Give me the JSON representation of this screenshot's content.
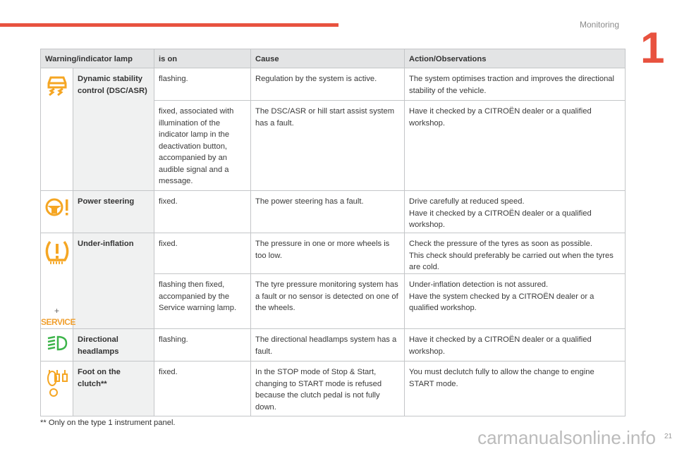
{
  "header": {
    "section": "Monitoring",
    "chapter": "1"
  },
  "table": {
    "columns": [
      "Warning/indicator lamp",
      "is on",
      "Cause",
      "Action/Observations"
    ],
    "rows": [
      {
        "icon": "dsc-car-skid-icon",
        "name": "Dynamic stability control (DSC/ASR)",
        "entries": [
          {
            "is_on": "flashing.",
            "cause": "Regulation by the system is active.",
            "action": "The system optimises traction and improves the directional stability of the vehicle."
          },
          {
            "is_on": "fixed, associated with illumination of the indicator lamp in the deactivation button, accompanied by an audible signal and a message.",
            "cause": "The DSC/ASR or hill start assist system has a fault.",
            "action": "Have it checked by a CITROËN dealer or a qualified workshop."
          }
        ]
      },
      {
        "icon": "power-steering-icon",
        "name": "Power steering",
        "entries": [
          {
            "is_on": "fixed.",
            "cause": "The power steering has a fault.",
            "action": "Drive carefully at reduced speed.\nHave it checked by a CITROËN dealer or a qualified workshop."
          }
        ]
      },
      {
        "icon": "tyre-pressure-icon",
        "name": "Under-inflation",
        "plus": "+",
        "service": "SERVICE",
        "entries": [
          {
            "is_on": "fixed.",
            "cause": "The pressure in one or more wheels is too low.",
            "action": "Check the pressure of the tyres as soon as possible.\nThis check should preferably be carried out when the tyres are cold."
          },
          {
            "is_on": "flashing then fixed, accompanied by the Service warning lamp.",
            "cause": "The tyre pressure monitoring system has a fault or no sensor is detected on one of the wheels.",
            "action": "Under-inflation detection is not assured.\nHave the system checked by a CITROËN dealer or a qualified workshop."
          }
        ]
      },
      {
        "icon": "directional-headlamps-icon",
        "name": "Directional headlamps",
        "entries": [
          {
            "is_on": "flashing.",
            "cause": "The directional headlamps system has a fault.",
            "action": "Have it checked by a CITROËN dealer or a qualified workshop."
          }
        ]
      },
      {
        "icon": "foot-on-clutch-icon",
        "name": "Foot on the clutch**",
        "entries": [
          {
            "is_on": "fixed.",
            "cause": "In the STOP mode of Stop & Start, changing to START mode is refused because the clutch pedal is not fully down.",
            "action": "You must declutch fully to allow the change to engine START mode."
          }
        ]
      }
    ]
  },
  "footnote": "** Only on the type 1 instrument panel.",
  "page_number": "21",
  "watermark": "carmanualsonline.info",
  "colors": {
    "accent": "#e8523f",
    "amber": "#f5a623",
    "green": "#3cb44a"
  }
}
